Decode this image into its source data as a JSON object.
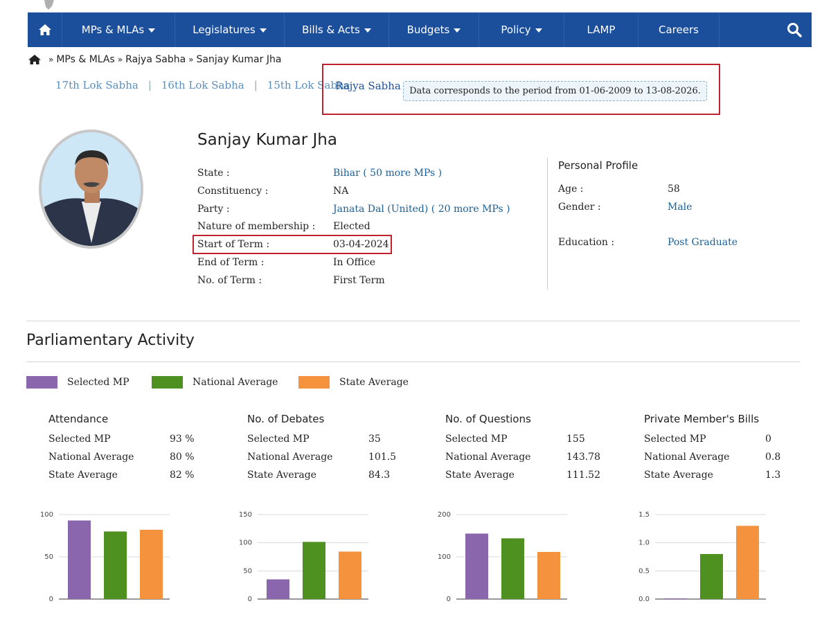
{
  "nav": {
    "items": [
      {
        "label": "MPs & MLAs",
        "dropdown": true
      },
      {
        "label": "Legislatures",
        "dropdown": true
      },
      {
        "label": "Bills & Acts",
        "dropdown": true
      },
      {
        "label": "Budgets",
        "dropdown": true
      },
      {
        "label": "Policy",
        "dropdown": true
      },
      {
        "label": "LAMP",
        "dropdown": false
      },
      {
        "label": "Careers",
        "dropdown": false
      }
    ],
    "bg_color": "#1b4f9c"
  },
  "breadcrumb": {
    "items": [
      "MPs & MLAs",
      "Rajya Sabha",
      "Sanjay Kumar Jha"
    ],
    "separator": "»"
  },
  "house_tabs": {
    "items": [
      "17th Lok Sabha",
      "16th Lok Sabha",
      "15th Lok Sabha"
    ],
    "divider": "|",
    "active": "Rajya Sabha"
  },
  "period_note": "Data corresponds to the period from 01-06-2009 to 13-08-2026.",
  "mp": {
    "name": "Sanjay Kumar Jha",
    "state_label": "State :",
    "state_value": "Bihar ( 50 more MPs )",
    "constituency_label": "Constituency :",
    "constituency_value": "NA",
    "party_label": "Party :",
    "party_value": "Janata Dal (United) ( 20 more MPs )",
    "nature_label": "Nature of membership :",
    "nature_value": "Elected",
    "start_label": "Start of Term :",
    "start_value": "03-04-2024",
    "end_label": "End of Term :",
    "end_value": "In Office",
    "no_term_label": "No. of Term :",
    "no_term_value": "First Term"
  },
  "profile": {
    "title": "Personal Profile",
    "age_label": "Age :",
    "age_value": "58",
    "gender_label": "Gender :",
    "gender_value": "Male",
    "education_label": "Education :",
    "education_value": "Post Graduate"
  },
  "activity": {
    "title": "Parliamentary Activity",
    "legend": [
      {
        "label": "Selected MP",
        "color": "#8a66ac"
      },
      {
        "label": "National Average",
        "color": "#4f9120"
      },
      {
        "label": "State Average",
        "color": "#f5923e"
      }
    ],
    "row_labels": [
      "Selected MP",
      "National Average",
      "State Average"
    ],
    "blocks": [
      {
        "title": "Attendance",
        "values": [
          "93 %",
          "80 %",
          "82 %"
        ]
      },
      {
        "title": "No. of Debates",
        "values": [
          "35",
          "101.5",
          "84.3"
        ]
      },
      {
        "title": "No. of Questions",
        "values": [
          "155",
          "143.78",
          "111.52"
        ]
      },
      {
        "title": "Private Member's Bills",
        "values": [
          "0",
          "0.8",
          "1.3"
        ]
      }
    ]
  },
  "chart_data": [
    {
      "type": "bar",
      "categories": [
        "Selected MP",
        "National Average",
        "State Average"
      ],
      "values": [
        93,
        80,
        82
      ],
      "ylim": [
        0,
        100
      ],
      "yticks": [
        "0",
        "50",
        "100"
      ],
      "colors": [
        "#8a66ac",
        "#4f9120",
        "#f5923e"
      ]
    },
    {
      "type": "bar",
      "categories": [
        "Selected MP",
        "National Average",
        "State Average"
      ],
      "values": [
        35,
        101.5,
        84.3
      ],
      "ylim": [
        0,
        150
      ],
      "yticks": [
        "0",
        "50",
        "100",
        "150"
      ],
      "colors": [
        "#8a66ac",
        "#4f9120",
        "#f5923e"
      ]
    },
    {
      "type": "bar",
      "categories": [
        "Selected MP",
        "National Average",
        "State Average"
      ],
      "values": [
        155,
        143.78,
        111.52
      ],
      "ylim": [
        0,
        200
      ],
      "yticks": [
        "0",
        "100",
        "200"
      ],
      "colors": [
        "#8a66ac",
        "#4f9120",
        "#f5923e"
      ]
    },
    {
      "type": "bar",
      "categories": [
        "Selected MP",
        "National Average",
        "State Average"
      ],
      "values": [
        0,
        0.8,
        1.3
      ],
      "ylim": [
        0,
        1.5
      ],
      "yticks": [
        "0.0",
        "0.5",
        "1.0",
        "1.5"
      ],
      "colors": [
        "#8a66ac",
        "#4f9120",
        "#f5923e"
      ]
    }
  ]
}
